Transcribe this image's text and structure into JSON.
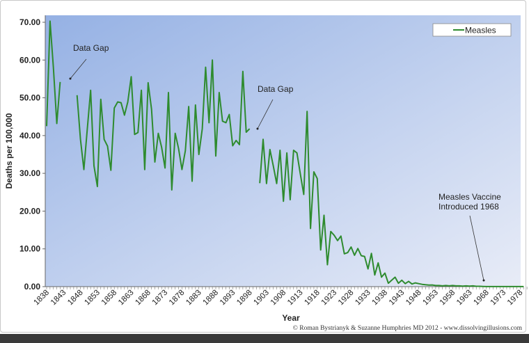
{
  "chart_data": {
    "type": "line",
    "title": "",
    "xlabel": "Year",
    "ylabel": "Deaths per 100,000",
    "ylim": [
      0,
      70
    ],
    "xlim": [
      1838,
      1980
    ],
    "yticks": [
      "0.00",
      "10.00",
      "20.00",
      "30.00",
      "40.00",
      "50.00",
      "60.00",
      "70.00"
    ],
    "xticks": [
      "1838",
      "1843",
      "1848",
      "1853",
      "1858",
      "1863",
      "1868",
      "1873",
      "1878",
      "1883",
      "1888",
      "1893",
      "1898",
      "1903",
      "1908",
      "1913",
      "1918",
      "1923",
      "1928",
      "1933",
      "1938",
      "1943",
      "1948",
      "1953",
      "1958",
      "1963",
      "1968",
      "1973",
      "1978"
    ],
    "legend": {
      "position": "top-right",
      "entries": [
        "Measles"
      ]
    },
    "series": [
      {
        "name": "Measles",
        "color": "#2e8b2e",
        "start_year": 1838,
        "values": [
          42.5,
          70.3,
          58,
          43.2,
          54.2,
          null,
          null,
          null,
          null,
          50.7,
          39,
          31,
          41.5,
          52,
          32,
          26.5,
          49.6,
          39,
          37.2,
          30.8,
          47.3,
          48.9,
          48.7,
          45.4,
          48.9,
          55.6,
          40.3,
          40.8,
          52,
          31,
          54,
          47,
          33,
          40.6,
          36.9,
          31.4,
          51.4,
          25.6,
          40.6,
          36.6,
          31,
          36,
          47.7,
          27.9,
          48.1,
          35,
          41.8,
          58.1,
          43.4,
          60,
          34.6,
          51.4,
          43.8,
          43.4,
          45.6,
          37.3,
          38.7,
          37.6,
          57,
          40.9,
          41.8,
          null,
          null,
          27.4,
          39,
          27.3,
          36.3,
          32,
          27.3,
          36.1,
          22.6,
          35.4,
          23,
          36.1,
          35.4,
          29.8,
          24.4,
          46.4,
          15.4,
          30.4,
          28.6,
          9.7,
          18.9,
          5.8,
          14.6,
          13.6,
          12.2,
          13.4,
          8.7,
          9,
          10.5,
          8.3,
          10.1,
          8.2,
          8,
          4.7,
          8.8,
          3.1,
          6.3,
          2.5,
          3.6,
          0.9,
          1.7,
          2.5,
          0.9,
          1.7,
          0.8,
          1.4,
          0.7,
          1.0,
          0.8,
          0.6,
          0.5,
          0.4,
          0.45,
          0.3,
          0.3,
          0.2,
          0.3,
          0.2,
          0.3,
          0.2,
          0.2,
          0.15,
          0.2,
          0.15,
          0.2,
          0.1,
          0.1,
          0.05,
          0.02,
          0.02,
          0.02,
          0.01,
          0.01,
          0.01,
          0.01,
          0.01,
          0.01,
          0.01,
          0.01,
          0.01
        ]
      }
    ],
    "annotations": [
      {
        "text": "Data Gap",
        "target_year": 1843
      },
      {
        "text": "Data Gap",
        "target_year": 1899
      },
      {
        "text": "Measles Vaccine",
        "text2": "Introduced 1968",
        "target_year": 1968
      }
    ],
    "credit": "© Roman Bystrianyk & Suzanne Humphries MD 2012 - www.dissolvingillusions.com"
  }
}
